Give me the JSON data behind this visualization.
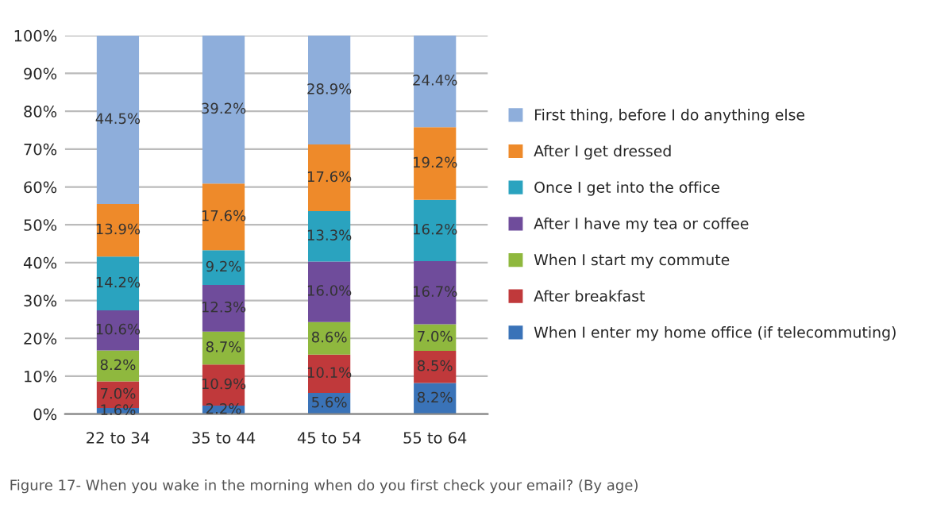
{
  "chart_data": {
    "type": "bar",
    "stacked": true,
    "categories": [
      "22 to 34",
      "35 to 44",
      "45 to 54",
      "55 to 64"
    ],
    "series": [
      {
        "name": "When I enter my home office (if telecommuting)",
        "color": "#3a73b8",
        "values": [
          1.6,
          2.2,
          5.6,
          8.2
        ],
        "value_labels": [
          "1.6%",
          "2.2%",
          "5.6%",
          "8.2%"
        ]
      },
      {
        "name": "After breakfast",
        "color": "#c0393b",
        "values": [
          7.0,
          10.9,
          10.1,
          8.5
        ],
        "value_labels": [
          "7.0%",
          "10.9%",
          "10.1%",
          "8.5%"
        ]
      },
      {
        "name": "When I start my commute",
        "color": "#8fb83e",
        "values": [
          8.2,
          8.7,
          8.6,
          7.0
        ],
        "value_labels": [
          "8.2%",
          "8.7%",
          "8.6%",
          "7.0%"
        ]
      },
      {
        "name": "After I have my tea or coffee",
        "color": "#6f4c9b",
        "values": [
          10.6,
          12.3,
          16.0,
          16.7
        ],
        "value_labels": [
          "10.6%",
          "12.3%",
          "16.0%",
          "16.7%"
        ]
      },
      {
        "name": "Once I get into the office",
        "color": "#2aa3bf",
        "values": [
          14.2,
          9.2,
          13.3,
          16.2
        ],
        "value_labels": [
          "14.2%",
          "9.2%",
          "13.3%",
          "16.2%"
        ]
      },
      {
        "name": "After I get dressed",
        "color": "#ee8a2a",
        "values": [
          13.9,
          17.6,
          17.6,
          19.2
        ],
        "value_labels": [
          "13.9%",
          "17.6%",
          "17.6%",
          "19.2%"
        ]
      },
      {
        "name": "First thing, before I do anything else",
        "color": "#8eaedb",
        "values": [
          44.5,
          39.2,
          28.9,
          24.4
        ],
        "value_labels": [
          "44.5%",
          "39.2%",
          "28.9%",
          "24.4%"
        ]
      }
    ],
    "ylim": [
      0,
      100
    ],
    "yticks": [
      {
        "value": 0,
        "label": "0%"
      },
      {
        "value": 10,
        "label": "10%"
      },
      {
        "value": 20,
        "label": "20%"
      },
      {
        "value": 30,
        "label": "30%"
      },
      {
        "value": 40,
        "label": "40%"
      },
      {
        "value": 50,
        "label": "50%"
      },
      {
        "value": 60,
        "label": "60%"
      },
      {
        "value": 70,
        "label": "70%"
      },
      {
        "value": 80,
        "label": "80%"
      },
      {
        "value": 90,
        "label": "90%"
      },
      {
        "value": 100,
        "label": "100%"
      }
    ],
    "grid": "y",
    "legend": "right",
    "annotations": [
      "Figure 17- When you wake in the morning when do you first check your email? (By age)"
    ]
  }
}
